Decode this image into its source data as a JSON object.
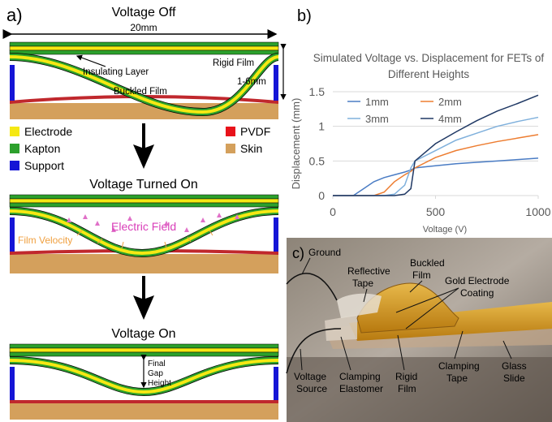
{
  "panel_a": {
    "label": "a)",
    "stage_titles": [
      "Voltage Off",
      "Voltage Turned On",
      "Voltage On"
    ],
    "width_label": "20mm",
    "height_label": "1-6mm",
    "layer_labels": [
      "Insulating Layer",
      "Rigid Film",
      "Buckled Film"
    ],
    "legend": [
      "Electrode",
      "Kapton",
      "Support",
      "PVDF",
      "Skin"
    ],
    "field_label": "Electric Field",
    "velocity_label": "Film Velocity",
    "gap_label": [
      "Final",
      "Gap",
      "Height"
    ]
  },
  "chart_data": {
    "type": "line",
    "panel_label": "b)",
    "title": "Simulated Voltage vs. Displacement for FETs of Different Heights",
    "x_label": "Voltage (V)",
    "y_label": "Displacement (mm)",
    "x": [
      0,
      100,
      150,
      200,
      250,
      300,
      350,
      380,
      400,
      500,
      600,
      700,
      800,
      900,
      1000
    ],
    "series": [
      {
        "name": "1mm",
        "color": "#4a7cc4",
        "values": [
          0,
          0,
          0.1,
          0.2,
          0.26,
          0.3,
          0.34,
          0.37,
          0.4,
          0.43,
          0.46,
          0.48,
          0.5,
          0.52,
          0.54
        ]
      },
      {
        "name": "2mm",
        "color": "#ed7d31",
        "values": [
          0,
          0,
          0,
          0,
          0.05,
          0.2,
          0.3,
          0.35,
          0.4,
          0.55,
          0.65,
          0.72,
          0.78,
          0.83,
          0.88
        ]
      },
      {
        "name": "3mm",
        "color": "#7fb0dc",
        "values": [
          0,
          0,
          0,
          0,
          0,
          0.02,
          0.15,
          0.4,
          0.5,
          0.65,
          0.8,
          0.9,
          1.0,
          1.07,
          1.13
        ]
      },
      {
        "name": "4mm",
        "color": "#1f3864",
        "values": [
          0,
          0,
          0,
          0,
          0,
          0,
          0.02,
          0.1,
          0.5,
          0.75,
          0.92,
          1.08,
          1.22,
          1.33,
          1.45
        ]
      }
    ],
    "xlim": [
      0,
      1000
    ],
    "xticks": [
      0,
      500,
      1000
    ],
    "ylim": [
      0,
      1.5
    ],
    "yticks": [
      0,
      0.5,
      1,
      1.5
    ],
    "grid": true
  },
  "panel_c": {
    "label": "c)",
    "labels": {
      "ground": "Ground",
      "reflective_tape": [
        "Reflective",
        "Tape"
      ],
      "buckled_film": [
        "Buckled",
        "Film"
      ],
      "gold_electrode": [
        "Gold Electrode",
        "Coating"
      ],
      "voltage_source": [
        "Voltage",
        "Source"
      ],
      "clamping_elastomer": [
        "Clamping",
        "Elastomer"
      ],
      "rigid_film": [
        "Rigid",
        "Film"
      ],
      "clamping_tape": [
        "Clamping",
        "Tape"
      ],
      "glass_slide": [
        "Glass",
        "Slide"
      ]
    }
  }
}
